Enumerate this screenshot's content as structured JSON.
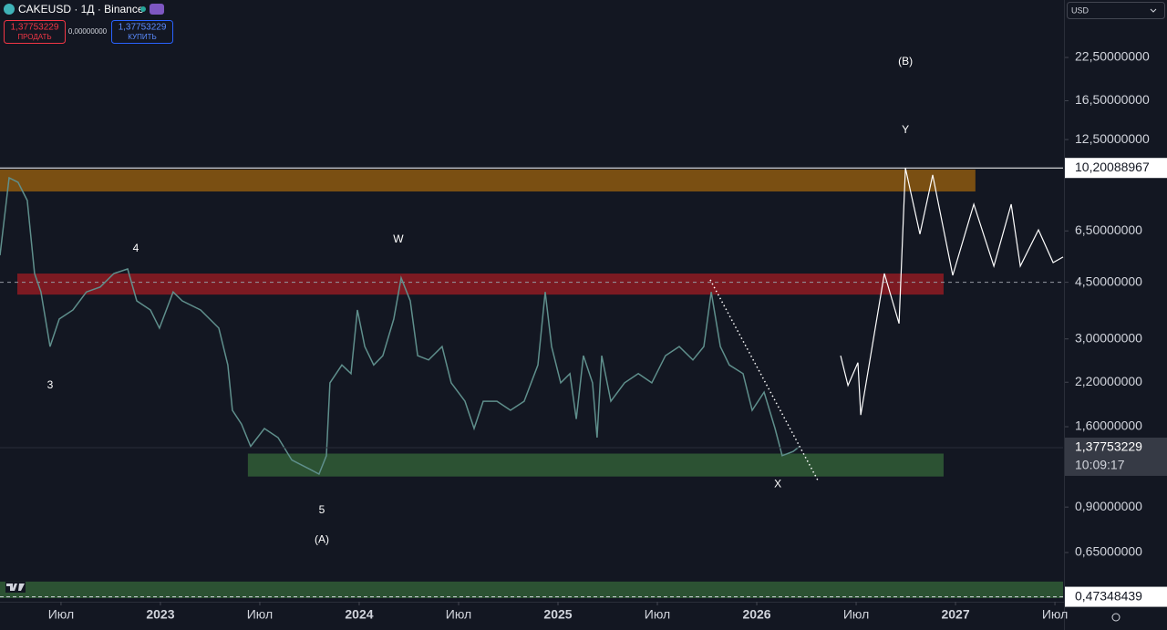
{
  "header": {
    "symbol": "CAKEUSD · 1Д · Binance",
    "sell_price": "1,37753229",
    "sell_label": "ПРОДАТЬ",
    "spread": "0,00000000",
    "buy_price": "1,37753229",
    "buy_label": "КУПИТЬ",
    "currency": "USD"
  },
  "chart_data": {
    "type": "line",
    "log_scale": true,
    "color": "#5f8f8c",
    "xlim": [
      2022.193,
      2027.541
    ],
    "ylim": [
      0.457,
      33.95
    ],
    "xticks": [
      {
        "value": 2022.5,
        "label": "Июл"
      },
      2023,
      {
        "value": 2023.5,
        "label": "Июл"
      },
      2024,
      {
        "value": 2024.5,
        "label": "Июл"
      },
      2025,
      {
        "value": 2025.5,
        "label": "Июл"
      },
      2026,
      {
        "value": 2026.5,
        "label": "Июл"
      },
      2027,
      {
        "value": 2027.5,
        "label": "Июл"
      }
    ],
    "yticks": [
      {
        "value": 22.5,
        "label": "22,50000000"
      },
      {
        "value": 16.5,
        "label": "16,50000000"
      },
      {
        "value": 12.5,
        "label": "12,50000000"
      },
      {
        "value": 6.5,
        "label": "6,50000000"
      },
      {
        "value": 4.5,
        "label": "4,50000000"
      },
      {
        "value": 3,
        "label": "3,00000000"
      },
      {
        "value": 2.2,
        "label": "2,20000000"
      },
      {
        "value": 1.6,
        "label": "1,60000000"
      },
      {
        "value": 0.9,
        "label": "0,90000000"
      },
      {
        "value": 0.65,
        "label": "0,65000000"
      }
    ],
    "x": [
      2022.193,
      2022.239,
      2022.284,
      2022.33,
      2022.367,
      2022.399,
      2022.445,
      2022.491,
      2022.56,
      2022.628,
      2022.697,
      2022.766,
      2022.835,
      2022.881,
      2022.95,
      2022.995,
      2023.064,
      2023.11,
      2023.202,
      2023.294,
      2023.339,
      2023.362,
      2023.408,
      2023.454,
      2023.523,
      2023.592,
      2023.661,
      2023.752,
      2023.798,
      2023.835,
      2023.853,
      2023.913,
      2023.959,
      2023.991,
      2024.028,
      2024.073,
      2024.119,
      2024.174,
      2024.211,
      2024.257,
      2024.294,
      2024.349,
      2024.417,
      2024.463,
      2024.532,
      2024.578,
      2024.624,
      2024.693,
      2024.761,
      2024.83,
      2024.899,
      2024.936,
      2024.968,
      2025.014,
      2025.06,
      2025.092,
      2025.128,
      2025.174,
      2025.197,
      2025.22,
      2025.266,
      2025.335,
      2025.404,
      2025.472,
      2025.541,
      2025.61,
      2025.679,
      2025.734,
      2025.771,
      2025.817,
      2025.862,
      2025.931,
      2025.977,
      2026.037,
      2026.092,
      2026.128,
      2026.183,
      2026.216
    ],
    "values": [
      5.46,
      9.51,
      9.21,
      8.08,
      4.79,
      4.2,
      2.84,
      3.46,
      3.69,
      4.2,
      4.35,
      4.79,
      4.95,
      3.94,
      3.69,
      3.24,
      4.2,
      3.94,
      3.69,
      3.24,
      2.49,
      1.8,
      1.63,
      1.39,
      1.58,
      1.48,
      1.26,
      1.18,
      1.14,
      1.3,
      2.19,
      2.49,
      2.34,
      3.69,
      2.84,
      2.49,
      2.66,
      3.46,
      4.64,
      3.94,
      2.66,
      2.58,
      2.84,
      2.19,
      1.92,
      1.58,
      1.92,
      1.92,
      1.8,
      1.92,
      2.49,
      4.2,
      2.84,
      2.19,
      2.34,
      1.69,
      2.66,
      2.19,
      1.48,
      2.66,
      1.92,
      2.19,
      2.34,
      2.19,
      2.66,
      2.84,
      2.58,
      2.84,
      4.2,
      2.84,
      2.49,
      2.34,
      1.8,
      2.05,
      1.58,
      1.3,
      1.34,
      1.39
    ],
    "forecast": {
      "color": "#ffffff",
      "x": [
        2026.422,
        2026.459,
        2026.509,
        2026.523,
        2026.642,
        2026.716,
        2026.748,
        2026.821,
        2026.885,
        2026.986,
        2027.092,
        2027.193,
        2027.28,
        2027.326,
        2027.417,
        2027.491,
        2027.541
      ],
      "values": [
        2.66,
        2.15,
        2.53,
        1.74,
        4.79,
        3.35,
        10.2,
        6.35,
        9.7,
        4.73,
        7.87,
        5.05,
        7.87,
        5.05,
        6.55,
        5.18,
        5.39
      ]
    },
    "trendline": {
      "color": "#ffffff",
      "x": [
        2025.766,
        2026.307
      ],
      "values": [
        4.58,
        1.09
      ]
    },
    "zones": [
      {
        "x": [
          2022.193,
          2027.1
        ],
        "y": [
          8.62,
          10.08
        ],
        "color": "#7a4f12"
      },
      {
        "x": [
          2022.28,
          2026.94
        ],
        "y": [
          4.12,
          4.79
        ],
        "color": "#7c1a22"
      },
      {
        "x": [
          2023.44,
          2026.94
        ],
        "y": [
          1.12,
          1.32
        ],
        "color": "#2c5233"
      },
      {
        "x": [
          2022.193,
          2027.541
        ],
        "y": [
          0.469,
          0.528
        ],
        "color": "#2c5233"
      }
    ],
    "price_lines": [
      {
        "value": 10.20088967,
        "label": "10,20088967",
        "style": "solid"
      },
      {
        "value": 1.37753229,
        "label": "1,37753229",
        "style": "faint",
        "countdown": "10:09:17"
      },
      {
        "value": 0.47348439,
        "label": "0,47348439",
        "style": "dashed"
      }
    ],
    "crosshair": 4.5,
    "annotations": [
      {
        "text": "3",
        "x": 2022.445,
        "y": 2.15
      },
      {
        "text": "4",
        "x": 2022.876,
        "y": 5.72
      },
      {
        "text": "5",
        "x": 2023.812,
        "y": 0.88
      },
      {
        "text": "(A)",
        "x": 2023.812,
        "y": 0.71
      },
      {
        "text": "W",
        "x": 2024.197,
        "y": 6.1
      },
      {
        "text": "X",
        "x": 2026.106,
        "y": 1.06
      },
      {
        "text": "Y",
        "x": 2026.748,
        "y": 13.36
      },
      {
        "text": "(B)",
        "x": 2026.748,
        "y": 21.8
      }
    ]
  }
}
